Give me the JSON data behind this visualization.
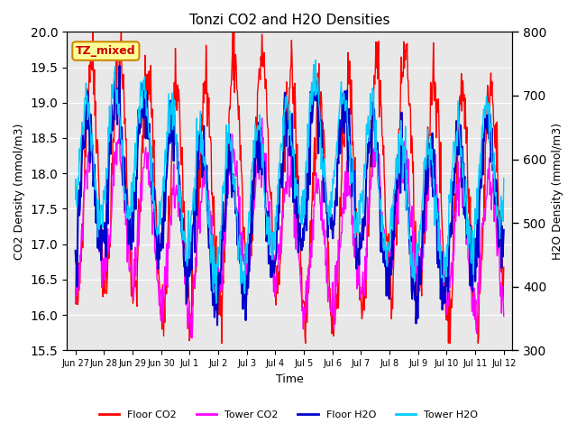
{
  "title": "Tonzi CO2 and H2O Densities",
  "xlabel": "Time",
  "ylabel_left": "CO2 Density (mmol/m3)",
  "ylabel_right": "H2O Density (mmol/m3)",
  "ylim_left": [
    15.5,
    20.0
  ],
  "ylim_right": [
    300,
    800
  ],
  "annotation_text": "TZ_mixed",
  "annotation_color": "#cc0000",
  "annotation_bg": "#ffff99",
  "annotation_border": "#cc8800",
  "colors": {
    "floor_co2": "#ff0000",
    "tower_co2": "#ff00ff",
    "floor_h2o": "#0000cc",
    "tower_h2o": "#00ccff"
  },
  "legend_labels": [
    "Floor CO2",
    "Tower CO2",
    "Floor H2O",
    "Tower H2O"
  ],
  "xtick_labels": [
    "Jun 27",
    "Jun 28",
    "Jun 29",
    "Jun 30",
    "Jul 1",
    "Jul 2",
    "Jul 3",
    "Jul 4",
    "Jul 5",
    "Jul 6",
    "Jul 7",
    "Jul 8",
    "Jul 9",
    "Jul 10",
    "Jul 11",
    "Jul 12"
  ],
  "plot_bg": "#e8e8e8",
  "n_days": 16,
  "seed": 42
}
